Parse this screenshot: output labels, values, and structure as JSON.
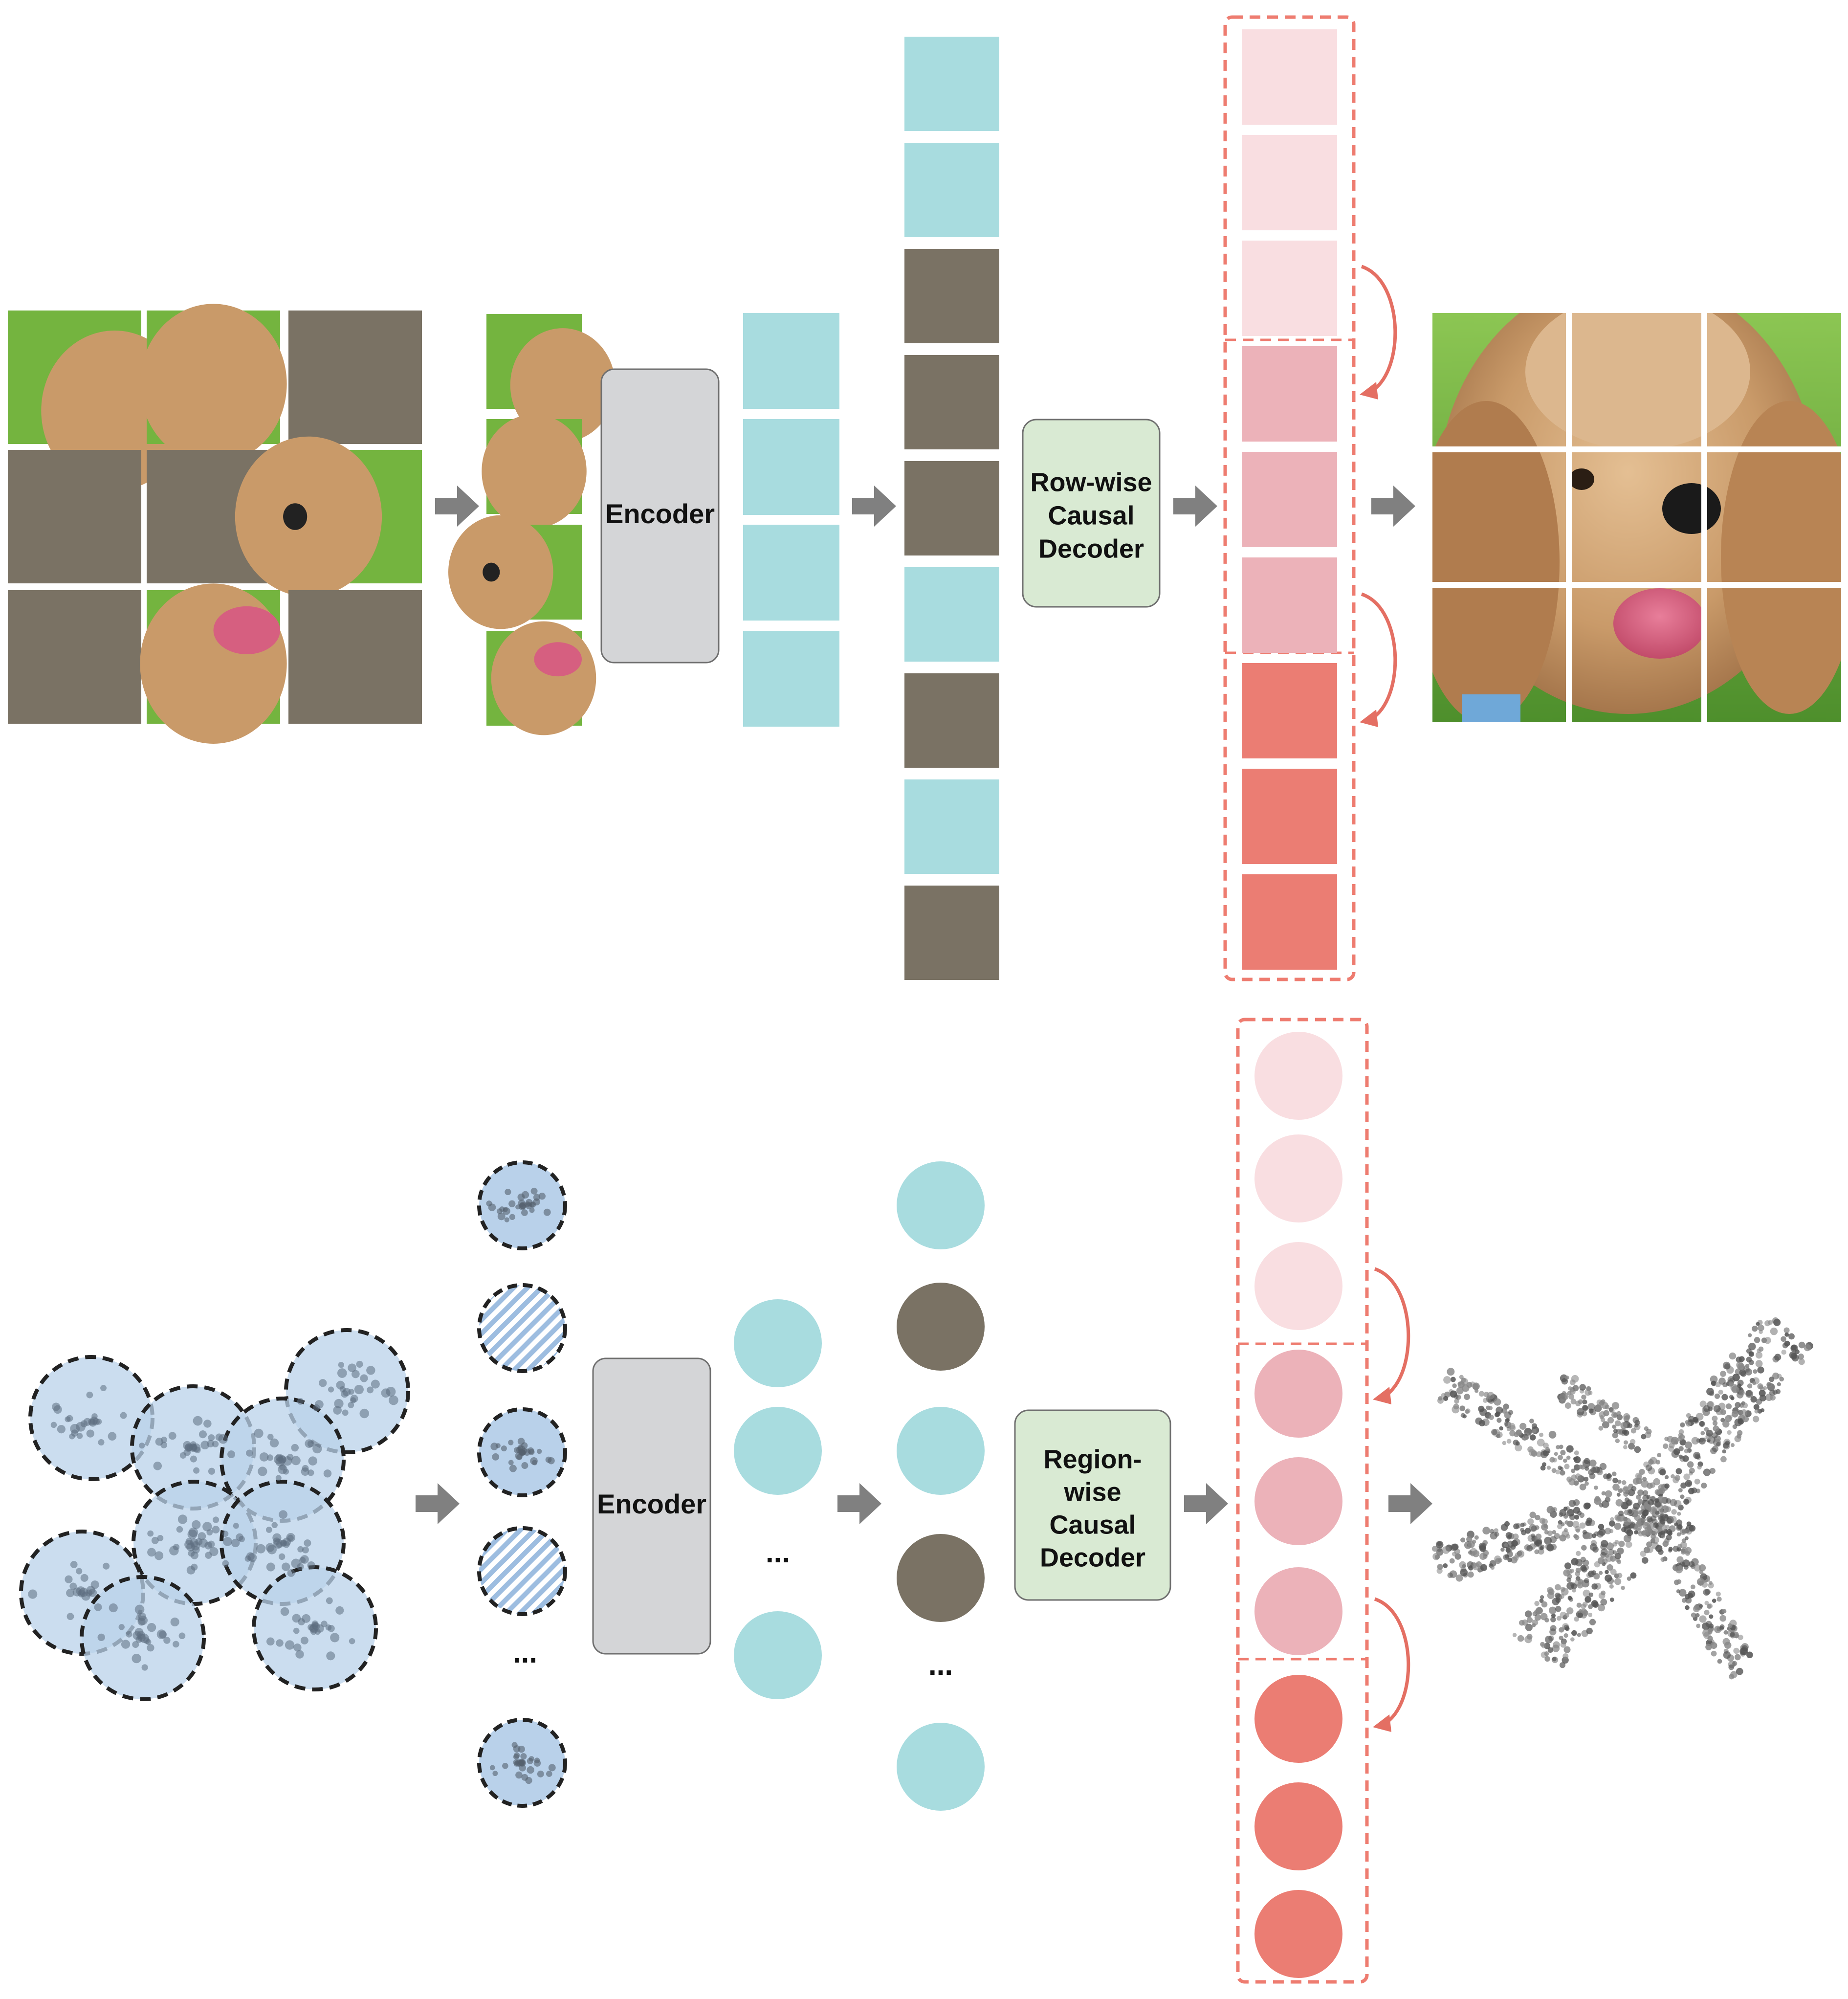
{
  "top_row": {
    "encoder_label": "Encoder",
    "decoder_label_lines": [
      "Row-wise",
      "Causal",
      "Decoder"
    ]
  },
  "bottom_row": {
    "encoder_label": "Encoder",
    "decoder_label_lines": [
      "Region-",
      "wise",
      "Causal",
      "Decoder"
    ],
    "ellipsis": "..."
  },
  "colors": {
    "visible_token": "#a8dcdf",
    "masked_token": "#7a7264",
    "decoder_group_light": "#f9dee1",
    "decoder_group_mid": "#ecb2b9",
    "decoder_group_dark": "#eb7d73",
    "dashed_frame": "#ee7c70",
    "box_gray": "#d4d5d7",
    "box_green": "#d9ead3",
    "arrow_gray": "#808080",
    "point_cloud_patch": "#b9d1ea",
    "grass": "#74b43f",
    "fur": "#c99a69"
  },
  "icons": {
    "flow_arrow": "gray-right-arrow",
    "causal_arrow": "curved-red-arrow",
    "output_image": "dog-photo",
    "output_cloud": "airplane-point-cloud"
  }
}
